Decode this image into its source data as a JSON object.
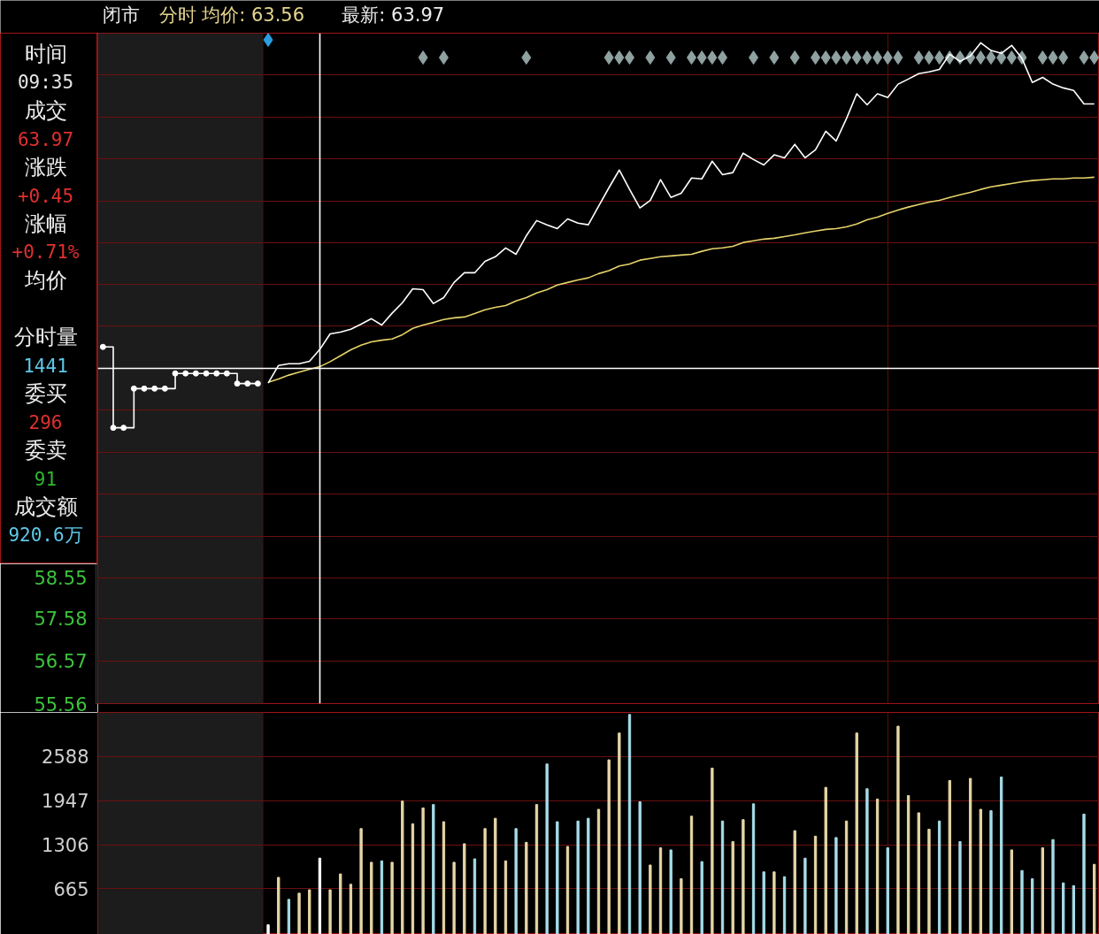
{
  "chart_data": [
    {
      "type": "line",
      "title": "闭市",
      "subtitle": "分时 均价: 63.56",
      "annotations": [
        "最新: 63.97"
      ],
      "categories": [
        null,
        null,
        null,
        null,
        null,
        null,
        null,
        null,
        null,
        null,
        null,
        null,
        null,
        null,
        null,
        null,
        null,
        null,
        null,
        null,
        null,
        null,
        null,
        null,
        null,
        null,
        null,
        null,
        null,
        null,
        null,
        null,
        null,
        null,
        null,
        null,
        null,
        null,
        null,
        null,
        null,
        null,
        null,
        null,
        null,
        null,
        null,
        null,
        null,
        null,
        null,
        null,
        null,
        null,
        null,
        null,
        null,
        null,
        null,
        null,
        null,
        null,
        null,
        null,
        null,
        null,
        null,
        null,
        null,
        null,
        null,
        null,
        null,
        null,
        null,
        null,
        null,
        null,
        null,
        null,
        null,
        null,
        null,
        null,
        null,
        null,
        null,
        null,
        null,
        null,
        null,
        null,
        null,
        null,
        null,
        null,
        null
      ],
      "series": [
        {
          "type": "scatter",
          "color": "#8fa1a1",
          "marker": "diamond",
          "values": [
            null,
            null,
            null,
            null,
            null,
            null,
            null,
            null,
            null,
            null,
            null,
            null,
            null,
            null,
            null,
            null,
            null,
            null,
            null,
            null,
            null,
            null,
            null,
            null,
            null,
            null,
            null,
            null,
            null,
            null,
            null,
            70.9,
            null,
            70.9,
            null,
            null,
            null,
            null,
            null,
            null,
            null,
            70.9,
            null,
            null,
            null,
            null,
            null,
            null,
            null,
            70.9,
            70.9,
            70.9,
            null,
            70.9,
            null,
            70.9,
            null,
            70.9,
            70.9,
            70.9,
            70.9,
            null,
            null,
            70.9,
            null,
            70.9,
            null,
            70.9,
            null,
            70.9,
            70.9,
            70.9,
            70.9,
            70.9,
            70.9,
            70.9,
            70.9,
            70.9,
            null,
            70.9,
            70.9,
            70.9,
            70.9,
            70.9,
            70.9,
            70.9,
            70.9,
            70.9,
            70.9,
            70.9,
            null,
            70.9,
            70.9,
            70.9,
            null,
            70.9,
            70.9
          ]
        },
        {
          "type": "scatter",
          "color": "#2a9fe0",
          "marker": "diamond",
          "values": [
            null,
            null,
            null,
            null,
            null,
            null,
            null,
            null,
            null,
            null,
            null,
            null,
            null,
            null,
            null,
            null,
            71.32,
            null,
            null,
            null,
            null,
            null,
            null,
            null,
            null,
            null,
            null,
            null,
            null,
            null,
            null,
            null,
            null,
            null,
            null,
            null,
            null,
            null,
            null,
            null,
            null,
            null,
            null,
            null,
            null,
            null,
            null,
            null,
            null,
            null,
            null,
            null,
            null,
            null,
            null,
            null,
            null,
            null,
            null,
            null,
            null,
            null,
            null,
            null,
            null,
            null,
            null,
            null,
            null,
            null,
            null,
            null,
            null,
            null,
            null,
            null,
            null,
            null,
            null,
            null,
            null,
            null,
            null,
            null,
            null,
            null,
            null,
            null,
            null,
            null,
            null,
            null,
            null,
            null,
            null,
            null,
            null
          ]
        },
        {
          "type": "step",
          "color": "#ffffff",
          "marker": "circle",
          "values": [
            64.03,
            62.11,
            62.11,
            63.04,
            63.04,
            63.04,
            63.04,
            63.4,
            63.4,
            63.4,
            63.4,
            63.4,
            63.4,
            63.16,
            63.16,
            63.16,
            null,
            null,
            null,
            null,
            null,
            null,
            null,
            null,
            null,
            null,
            null,
            null,
            null,
            null,
            null,
            null,
            null,
            null,
            null,
            null,
            null,
            null,
            null,
            null,
            null,
            null,
            null,
            null,
            null,
            null,
            null,
            null,
            null,
            null,
            null,
            null,
            null,
            null,
            null,
            null,
            null,
            null,
            null,
            null,
            null,
            null,
            null,
            null,
            null,
            null,
            null,
            null,
            null,
            null,
            null,
            null,
            null,
            null,
            null,
            null,
            null,
            null,
            null,
            null,
            null,
            null,
            null,
            null,
            null,
            null,
            null,
            null,
            null,
            null,
            null,
            null,
            null,
            null,
            null,
            null,
            null
          ]
        },
        {
          "color": "#e6d36a",
          "values": [
            null,
            null,
            null,
            null,
            null,
            null,
            null,
            null,
            null,
            null,
            null,
            null,
            null,
            null,
            null,
            null,
            63.19,
            63.27,
            63.36,
            63.43,
            63.5,
            63.56,
            63.68,
            63.82,
            63.96,
            64.07,
            64.15,
            64.19,
            64.22,
            64.32,
            64.47,
            64.55,
            64.61,
            64.68,
            64.72,
            64.74,
            64.82,
            64.91,
            64.97,
            65.01,
            65.12,
            65.2,
            65.31,
            65.39,
            65.5,
            65.56,
            65.62,
            65.67,
            65.77,
            65.84,
            65.95,
            66.0,
            66.09,
            66.13,
            66.17,
            66.19,
            66.21,
            66.23,
            66.3,
            66.36,
            66.38,
            66.42,
            66.51,
            66.55,
            66.59,
            66.61,
            66.65,
            66.69,
            66.74,
            66.78,
            66.82,
            66.84,
            66.88,
            66.95,
            67.05,
            67.11,
            67.2,
            67.28,
            67.35,
            67.41,
            67.47,
            67.51,
            67.58,
            67.64,
            67.7,
            67.77,
            67.83,
            67.87,
            67.91,
            67.95,
            67.98,
            68.0,
            68.02,
            68.02,
            68.04,
            68.04,
            68.06
          ]
        },
        {
          "color": "#ffffff",
          "values": [
            null,
            null,
            null,
            null,
            null,
            null,
            null,
            null,
            null,
            null,
            null,
            null,
            null,
            null,
            null,
            null,
            63.17,
            63.59,
            63.63,
            63.63,
            63.69,
            63.97,
            64.34,
            64.38,
            64.45,
            64.57,
            64.7,
            64.55,
            64.83,
            65.08,
            65.41,
            65.39,
            65.06,
            65.2,
            65.56,
            65.79,
            65.79,
            66.06,
            66.17,
            66.38,
            66.23,
            66.67,
            67.03,
            66.93,
            66.84,
            67.07,
            66.97,
            66.93,
            67.37,
            67.81,
            68.23,
            67.77,
            67.33,
            67.51,
            68.0,
            67.58,
            67.68,
            68.04,
            68.02,
            68.44,
            68.12,
            68.17,
            68.63,
            68.48,
            68.35,
            68.59,
            68.52,
            68.84,
            68.52,
            68.71,
            69.15,
            68.92,
            69.45,
            70.04,
            69.78,
            70.04,
            69.95,
            70.27,
            70.39,
            70.52,
            70.56,
            70.62,
            70.98,
            70.81,
            70.94,
            71.25,
            71.07,
            71.0,
            71.19,
            70.88,
            70.31,
            70.43,
            70.27,
            70.18,
            70.12,
            69.8,
            69.8
          ]
        }
      ],
      "ylim": [
        55.56,
        71.48
      ],
      "yticks": [
        55.56,
        56.57,
        57.58,
        58.55,
        {
          "value": 59.54,
          "label": null
        },
        {
          "value": 60.54,
          "label": null
        },
        {
          "value": 61.53,
          "label": null
        },
        {
          "value": 62.53,
          "label": null
        },
        {
          "value": 64.52,
          "label": null
        },
        {
          "value": 65.51,
          "label": null
        },
        {
          "value": 66.51,
          "label": null
        },
        {
          "value": 67.5,
          "label": null
        },
        {
          "value": 68.5,
          "label": null
        },
        {
          "value": 69.49,
          "label": null
        },
        {
          "value": 70.49,
          "label": null
        },
        {
          "value": 71.48,
          "label": null
        }
      ],
      "grid": "y",
      "tick_labels": "y",
      "ref_lines": [
        {
          "axis": "y",
          "value": 63.52,
          "color": "#ffffff"
        }
      ]
    },
    {
      "type": "bar",
      "categories": [
        null,
        null,
        null,
        null,
        null,
        null,
        null,
        null,
        null,
        null,
        null,
        null,
        null,
        null,
        null,
        null,
        null,
        null,
        null,
        null,
        null,
        null,
        null,
        null,
        null,
        null,
        null,
        null,
        null,
        null,
        null,
        null,
        null,
        null,
        null,
        null,
        null,
        null,
        null,
        null,
        null,
        null,
        null,
        null,
        null,
        null,
        null,
        null,
        null,
        null,
        null,
        null,
        null,
        null,
        null,
        null,
        null,
        null,
        null,
        null,
        null,
        null,
        null,
        null,
        null,
        null,
        null,
        null,
        null,
        null,
        null,
        null,
        null,
        null,
        null,
        null,
        null,
        null,
        null,
        null,
        null,
        null,
        null,
        null,
        null,
        null,
        null,
        null,
        null,
        null,
        null,
        null,
        null,
        null,
        null,
        null,
        null
      ],
      "values": [
        null,
        null,
        null,
        null,
        null,
        null,
        null,
        null,
        null,
        null,
        null,
        null,
        null,
        null,
        null,
        null,
        140,
        830,
        510,
        600,
        650,
        1110,
        650,
        880,
        730,
        1540,
        1050,
        1070,
        1050,
        1940,
        1610,
        1840,
        1890,
        1640,
        1050,
        1320,
        1100,
        1540,
        1690,
        1070,
        1540,
        1340,
        1890,
        2480,
        1640,
        1280,
        1650,
        1690,
        1820,
        2540,
        2930,
        3200,
        1930,
        1010,
        1260,
        1230,
        810,
        1720,
        1060,
        2420,
        1650,
        1350,
        1670,
        1900,
        910,
        910,
        840,
        1510,
        1110,
        1430,
        2140,
        1410,
        1650,
        2930,
        2120,
        1970,
        1260,
        3030,
        2020,
        1770,
        1530,
        1650,
        2240,
        1350,
        2270,
        1820,
        1800,
        2290,
        1230,
        930,
        810,
        1260,
        1380,
        750,
        710,
        1750,
        1020
      ],
      "colors": [
        null,
        null,
        null,
        null,
        null,
        null,
        null,
        null,
        null,
        null,
        null,
        null,
        null,
        null,
        null,
        null,
        "#ffffff",
        "#e6d6a6",
        "#a6dce8",
        "#e6d6a6",
        "#e6d6a6",
        "#ffffff",
        "#e6d6a6",
        "#e6d6a6",
        "#e6d6a6",
        "#e6d6a6",
        "#e6d6a6",
        "#a6dce8",
        "#e6d6a6",
        "#e6d6a6",
        "#e6d6a6",
        "#e6d6a6",
        "#a6dce8",
        "#e6d6a6",
        "#e6d6a6",
        "#e6d6a6",
        "#a6dce8",
        "#e6d6a6",
        "#e6d6a6",
        "#e6d6a6",
        "#a6dce8",
        "#e6d6a6",
        "#e6d6a6",
        "#a6dce8",
        "#a6dce8",
        "#e6d6a6",
        "#a6dce8",
        "#a6dce8",
        "#e6d6a6",
        "#e6d6a6",
        "#e6d6a6",
        "#a6dce8",
        "#a6dce8",
        "#e6d6a6",
        "#e6d6a6",
        "#a6dce8",
        "#e6d6a6",
        "#e6d6a6",
        "#a6dce8",
        "#e6d6a6",
        "#a6dce8",
        "#e6d6a6",
        "#e6d6a6",
        "#a6dce8",
        "#a6dce8",
        "#e6d6a6",
        "#a6dce8",
        "#e6d6a6",
        "#a6dce8",
        "#e6d6a6",
        "#e6d6a6",
        "#a6dce8",
        "#e6d6a6",
        "#e6d6a6",
        "#a6dce8",
        "#e6d6a6",
        "#a6dce8",
        "#e6d6a6",
        "#e6d6a6",
        "#e6d6a6",
        "#e6d6a6",
        "#a6dce8",
        "#e6d6a6",
        "#a6dce8",
        "#e6d6a6",
        "#e6d6a6",
        "#a6dce8",
        "#a6dce8",
        "#e6d6a6",
        "#a6dce8",
        "#a6dce8",
        "#e6d6a6",
        "#a6dce8",
        "#a6dce8",
        "#a6dce8",
        "#a6dce8",
        "#e6d6a6"
      ],
      "ylim": [
        0,
        3230
      ],
      "yticks": [
        665,
        1306,
        1947,
        2588
      ],
      "grid": "y",
      "tick_labels": "y"
    },
    {
      "type": "other",
      "categories": [
        "时间",
        "成交",
        "涨跌",
        "涨幅",
        "均价",
        "分时量",
        "委买",
        "委卖",
        "成交额"
      ],
      "value_labels": [
        "09:35",
        "63.97",
        "+0.45",
        "+0.71%",
        null,
        "1441",
        "296",
        "91",
        "920.6万"
      ],
      "colors": [
        "#e6e6e6",
        "#e03030",
        "#e03030",
        "#e03030",
        null,
        "#5ec8e8",
        "#e03030",
        "#2eb82e",
        "#5ec8e8"
      ]
    }
  ]
}
